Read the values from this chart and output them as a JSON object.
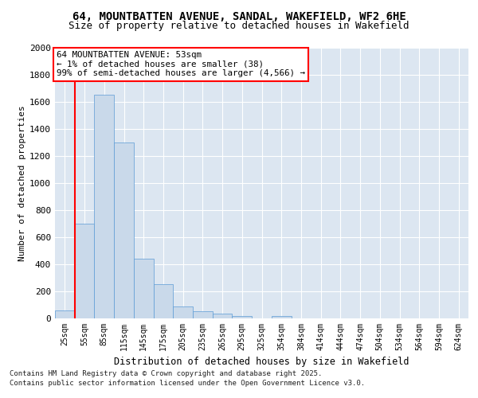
{
  "title_line1": "64, MOUNTBATTEN AVENUE, SANDAL, WAKEFIELD, WF2 6HE",
  "title_line2": "Size of property relative to detached houses in Wakefield",
  "xlabel": "Distribution of detached houses by size in Wakefield",
  "ylabel": "Number of detached properties",
  "bar_color": "#c9d9ea",
  "bar_edge_color": "#5b9bd5",
  "annotation_text": "64 MOUNTBATTEN AVENUE: 53sqm\n← 1% of detached houses are smaller (38)\n99% of semi-detached houses are larger (4,566) →",
  "footnote1": "Contains HM Land Registry data © Crown copyright and database right 2025.",
  "footnote2": "Contains public sector information licensed under the Open Government Licence v3.0.",
  "categories": [
    "25sqm",
    "55sqm",
    "85sqm",
    "115sqm",
    "145sqm",
    "175sqm",
    "205sqm",
    "235sqm",
    "265sqm",
    "295sqm",
    "325sqm",
    "354sqm",
    "384sqm",
    "414sqm",
    "444sqm",
    "474sqm",
    "504sqm",
    "534sqm",
    "564sqm",
    "594sqm",
    "624sqm"
  ],
  "values": [
    60,
    700,
    1650,
    1300,
    440,
    255,
    90,
    55,
    35,
    20,
    0,
    20,
    0,
    0,
    0,
    0,
    0,
    0,
    0,
    0,
    0
  ],
  "ylim": [
    0,
    2000
  ],
  "yticks": [
    0,
    200,
    400,
    600,
    800,
    1000,
    1200,
    1400,
    1600,
    1800,
    2000
  ],
  "background_color": "#dce6f1",
  "title_fontsize": 10,
  "subtitle_fontsize": 9,
  "red_line_x": 0.5
}
